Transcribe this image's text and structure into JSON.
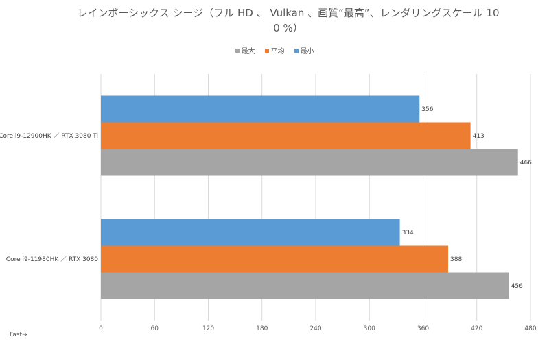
{
  "chart_data": {
    "type": "bar",
    "orientation": "horizontal",
    "title": "レインボーシックス シージ（フル HD 、 Vulkan 、画質“最高”、レンダリングスケール 10\n0 %）",
    "categories": [
      "Core i9-12900HK ／ RTX 3080 Ti",
      "Core i9-11980HK ／ RTX 3080"
    ],
    "series": [
      {
        "name": "最小",
        "color": "#5B9BD5",
        "values": [
          356,
          334
        ]
      },
      {
        "name": "平均",
        "color": "#ED7D31",
        "values": [
          413,
          388
        ]
      },
      {
        "name": "最大",
        "color": "#A5A5A5",
        "values": [
          466,
          456
        ]
      }
    ],
    "legend_order": [
      "最大",
      "平均",
      "最小"
    ],
    "legend_position": "top",
    "xlim": [
      0,
      480
    ],
    "xticks": [
      0,
      60,
      120,
      180,
      240,
      300,
      360,
      420,
      480
    ],
    "grid": true,
    "xlabel": "",
    "ylabel": "",
    "footnote": "Fast→"
  }
}
